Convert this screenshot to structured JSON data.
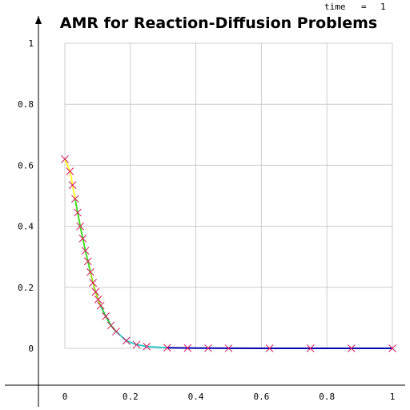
{
  "time_label": "time",
  "time_eq": "=",
  "time_value": "1",
  "chart_data": {
    "type": "line",
    "title": "AMR for Reaction-Diffusion Problems",
    "xlabel": "",
    "ylabel": "",
    "xlim": [
      0,
      1
    ],
    "ylim": [
      0,
      1
    ],
    "xticks": [
      0,
      0.2,
      0.4,
      0.6,
      0.8,
      1
    ],
    "yticks": [
      0,
      0.2,
      0.4,
      0.6,
      0.8,
      1
    ],
    "xtick_labels": [
      "0",
      "0.2",
      "0.4",
      "0.6",
      "0.8",
      "1"
    ],
    "ytick_labels": [
      "0",
      "0.2",
      "0.4",
      "0.6",
      "0.8",
      "1"
    ],
    "grid": true,
    "marker": "x",
    "marker_color": "#d4145a",
    "series": [
      {
        "color": "#ffff33",
        "x": [
          0,
          0.0156,
          0.0234,
          0.0313
        ],
        "y": [
          0.62,
          0.58,
          0.535,
          0.49
        ]
      },
      {
        "color": "#44dd22",
        "x": [
          0.0313,
          0.0391,
          0.0469,
          0.0547,
          0.0625,
          0.0703,
          0.0781
        ],
        "y": [
          0.49,
          0.445,
          0.4,
          0.36,
          0.32,
          0.285,
          0.25
        ]
      },
      {
        "color": "#99dd22",
        "x": [
          0.0781,
          0.0859,
          0.0938,
          0.1016,
          0.1094
        ],
        "y": [
          0.25,
          0.215,
          0.185,
          0.16,
          0.14
        ]
      },
      {
        "color": "#22cc44",
        "x": [
          0.1094,
          0.125,
          0.1406,
          0.1563
        ],
        "y": [
          0.14,
          0.105,
          0.075,
          0.055
        ]
      },
      {
        "color": "#33cccc",
        "x": [
          0.1563,
          0.1875,
          0.2188,
          0.25,
          0.3125
        ],
        "y": [
          0.055,
          0.025,
          0.012,
          0.006,
          0.002
        ]
      },
      {
        "color": "#0000aa",
        "x": [
          0.3125,
          0.375,
          0.4375,
          0.5,
          0.625,
          0.75,
          0.875,
          1
        ],
        "y": [
          0.002,
          0.001,
          0.0005,
          0.0002,
          0.0001,
          0,
          0,
          0
        ]
      }
    ],
    "markers_x": [
      0,
      0.0156,
      0.0234,
      0.0313,
      0.0391,
      0.0469,
      0.0547,
      0.0625,
      0.0703,
      0.0781,
      0.0859,
      0.0938,
      0.1016,
      0.1094,
      0.125,
      0.1406,
      0.1563,
      0.1875,
      0.2188,
      0.25,
      0.3125,
      0.375,
      0.4375,
      0.5,
      0.625,
      0.75,
      0.875,
      1
    ],
    "markers_y": [
      0.62,
      0.58,
      0.535,
      0.49,
      0.445,
      0.4,
      0.36,
      0.32,
      0.285,
      0.25,
      0.215,
      0.185,
      0.16,
      0.14,
      0.105,
      0.075,
      0.055,
      0.025,
      0.012,
      0.006,
      0.002,
      0.001,
      0.0005,
      0.0002,
      0.0001,
      0,
      0,
      0
    ]
  }
}
